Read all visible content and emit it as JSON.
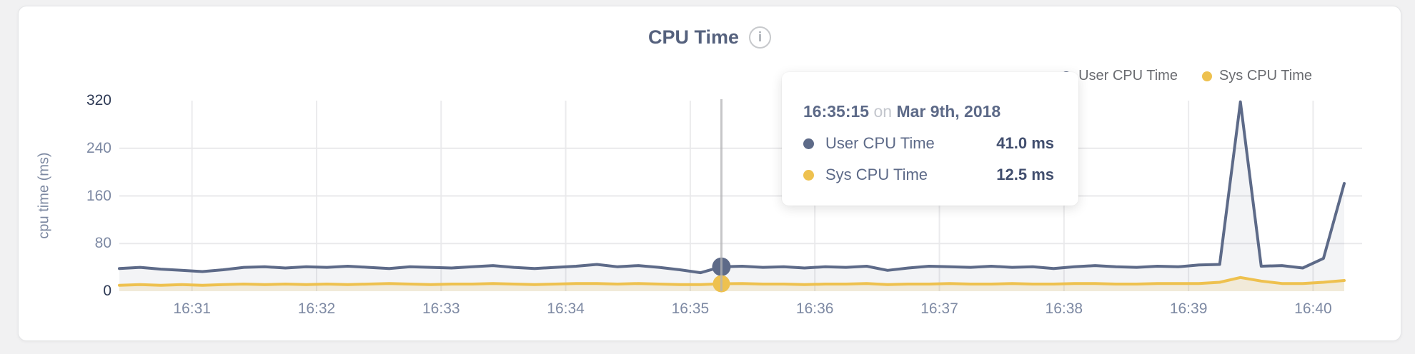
{
  "card": {
    "title": "CPU Time",
    "info_icon_glyph": "i"
  },
  "legend": {
    "items": [
      {
        "label": "User CPU Time",
        "color": "#5d6a88"
      },
      {
        "label": "Sys CPU Time",
        "color": "#eec14f"
      }
    ]
  },
  "tooltip": {
    "time": "16:35:15",
    "conjunction": "on",
    "date": "Mar 9th, 2018",
    "rows": [
      {
        "label": "User CPU Time",
        "value": "41.0 ms",
        "color": "#5d6a88"
      },
      {
        "label": "Sys CPU Time",
        "value": "12.5 ms",
        "color": "#eec14f"
      }
    ]
  },
  "chart_data": {
    "type": "area",
    "title": "CPU Time",
    "xlabel": "",
    "ylabel": "cpu time (ms)",
    "ylim": [
      0,
      320
    ],
    "y_ticks": [
      320,
      240,
      160,
      80,
      0
    ],
    "x_tick_labels": [
      "16:31",
      "16:32",
      "16:33",
      "16:34",
      "16:35",
      "16:36",
      "16:37",
      "16:38",
      "16:39",
      "16:40"
    ],
    "x_start": "16:30:25",
    "x_interval_seconds": 10,
    "grid": true,
    "legend_position": "top-right",
    "series": [
      {
        "name": "User CPU Time",
        "color": "#5d6a88",
        "fill": "rgba(99,112,141,0.08)",
        "values": [
          38,
          40,
          37,
          35,
          33,
          36,
          40,
          41,
          39,
          41,
          40,
          42,
          40,
          38,
          41,
          40,
          39,
          41,
          43,
          40,
          38,
          40,
          42,
          45,
          41,
          43,
          40,
          36,
          31,
          41,
          42,
          40,
          41,
          39,
          41,
          40,
          42,
          35,
          39,
          42,
          41,
          40,
          42,
          40,
          41,
          38,
          41,
          43,
          41,
          40,
          42,
          41,
          44,
          45,
          318,
          42,
          43,
          39,
          55,
          181
        ]
      },
      {
        "name": "Sys CPU Time",
        "color": "#eec14f",
        "fill": "rgba(230,185,70,0.16)",
        "values": [
          10,
          11,
          10,
          11,
          10,
          11,
          12,
          11,
          12,
          11,
          12,
          11,
          12,
          13,
          12,
          11,
          12,
          12,
          13,
          12,
          11,
          12,
          13,
          13,
          12,
          13,
          12,
          11,
          11,
          12.5,
          13,
          12,
          12,
          11,
          12,
          12,
          13,
          11,
          12,
          12,
          13,
          12,
          12,
          13,
          12,
          12,
          13,
          13,
          12,
          12,
          13,
          13,
          13,
          15,
          23,
          17,
          13,
          13,
          15,
          18
        ]
      }
    ],
    "highlight": {
      "index": 29,
      "time": "16:35:15",
      "date": "Mar 9th, 2018",
      "values_ms": [
        41.0,
        12.5
      ]
    }
  }
}
